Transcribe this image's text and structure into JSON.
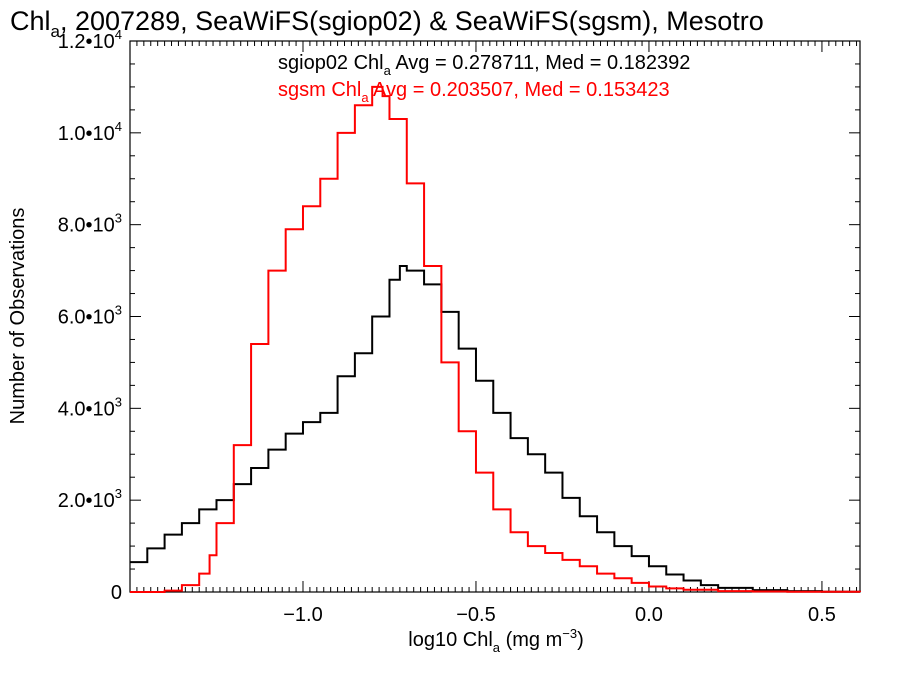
{
  "chart_data": {
    "type": "line",
    "title": {
      "base": "Chl",
      "sub": "a",
      "rest": ", 2007289, SeaWiFS(sgiop02) & SeaWiFS(sgsm), Mesotro"
    },
    "xlabel": {
      "base": "log10 Chl",
      "sub": "a",
      "mid": " (mg m",
      "sup": "−3",
      "end": ")"
    },
    "ylabel": "Number of Observations",
    "xlim": [
      -1.5,
      0.61
    ],
    "ylim": [
      0,
      12000
    ],
    "grid": false,
    "x_ticks": [
      {
        "value": -1.0,
        "label": "−1.0"
      },
      {
        "value": -0.5,
        "label": "−0.5"
      },
      {
        "value": 0.0,
        "label": "0.0"
      },
      {
        "value": 0.5,
        "label": "0.5"
      }
    ],
    "y_ticks": [
      {
        "value": 0,
        "base": "0",
        "exp": ""
      },
      {
        "value": 2000,
        "base": "2.0•10",
        "exp": "3"
      },
      {
        "value": 4000,
        "base": "4.0•10",
        "exp": "3"
      },
      {
        "value": 6000,
        "base": "6.0•10",
        "exp": "3"
      },
      {
        "value": 8000,
        "base": "8.0•10",
        "exp": "3"
      },
      {
        "value": 10000,
        "base": "1.0•10",
        "exp": "4"
      },
      {
        "value": 12000,
        "base": "1.2•10",
        "exp": "4"
      }
    ],
    "annotations": [
      {
        "series": "sgiop02",
        "color": "#000000",
        "pre": "sgiop02 Chl",
        "sub": "a",
        "post": " Avg = 0.278711, Med = 0.182392"
      },
      {
        "series": "sgsm",
        "color": "#ff0000",
        "pre": "sgsm Chl",
        "sub": "a",
        "post": " Avg = 0.203507, Med = 0.153423"
      }
    ],
    "series": [
      {
        "name": "sgiop02",
        "color": "#000000",
        "style": "step",
        "points": [
          [
            -1.5,
            650
          ],
          [
            -1.45,
            950
          ],
          [
            -1.4,
            1250
          ],
          [
            -1.35,
            1500
          ],
          [
            -1.3,
            1800
          ],
          [
            -1.25,
            2000
          ],
          [
            -1.2,
            2350
          ],
          [
            -1.15,
            2700
          ],
          [
            -1.1,
            3100
          ],
          [
            -1.05,
            3450
          ],
          [
            -1.0,
            3700
          ],
          [
            -0.95,
            3900
          ],
          [
            -0.9,
            4700
          ],
          [
            -0.85,
            5200
          ],
          [
            -0.8,
            6000
          ],
          [
            -0.75,
            6800
          ],
          [
            -0.72,
            7100
          ],
          [
            -0.7,
            7000
          ],
          [
            -0.65,
            6700
          ],
          [
            -0.6,
            6100
          ],
          [
            -0.55,
            5300
          ],
          [
            -0.5,
            4600
          ],
          [
            -0.45,
            3900
          ],
          [
            -0.4,
            3350
          ],
          [
            -0.35,
            3000
          ],
          [
            -0.3,
            2600
          ],
          [
            -0.25,
            2050
          ],
          [
            -0.2,
            1650
          ],
          [
            -0.15,
            1300
          ],
          [
            -0.1,
            1000
          ],
          [
            -0.05,
            780
          ],
          [
            0.0,
            560
          ],
          [
            0.05,
            380
          ],
          [
            0.1,
            250
          ],
          [
            0.15,
            150
          ],
          [
            0.2,
            90
          ],
          [
            0.3,
            40
          ],
          [
            0.4,
            20
          ],
          [
            0.5,
            5
          ],
          [
            0.61,
            0
          ]
        ]
      },
      {
        "name": "sgsm",
        "color": "#ff0000",
        "style": "step",
        "points": [
          [
            -1.5,
            0
          ],
          [
            -1.4,
            30
          ],
          [
            -1.35,
            150
          ],
          [
            -1.3,
            400
          ],
          [
            -1.27,
            800
          ],
          [
            -1.25,
            1500
          ],
          [
            -1.2,
            3200
          ],
          [
            -1.15,
            5400
          ],
          [
            -1.1,
            7000
          ],
          [
            -1.05,
            7900
          ],
          [
            -1.0,
            8400
          ],
          [
            -0.95,
            9000
          ],
          [
            -0.9,
            10000
          ],
          [
            -0.85,
            10600
          ],
          [
            -0.8,
            11000
          ],
          [
            -0.77,
            10800
          ],
          [
            -0.75,
            10300
          ],
          [
            -0.7,
            8900
          ],
          [
            -0.65,
            7100
          ],
          [
            -0.6,
            5000
          ],
          [
            -0.55,
            3500
          ],
          [
            -0.5,
            2600
          ],
          [
            -0.45,
            1800
          ],
          [
            -0.4,
            1300
          ],
          [
            -0.35,
            1000
          ],
          [
            -0.3,
            850
          ],
          [
            -0.25,
            700
          ],
          [
            -0.2,
            560
          ],
          [
            -0.15,
            400
          ],
          [
            -0.1,
            300
          ],
          [
            -0.05,
            200
          ],
          [
            0.0,
            120
          ],
          [
            0.05,
            80
          ],
          [
            0.1,
            50
          ],
          [
            0.2,
            20
          ],
          [
            0.3,
            10
          ],
          [
            0.4,
            5
          ],
          [
            0.61,
            0
          ]
        ]
      }
    ]
  }
}
